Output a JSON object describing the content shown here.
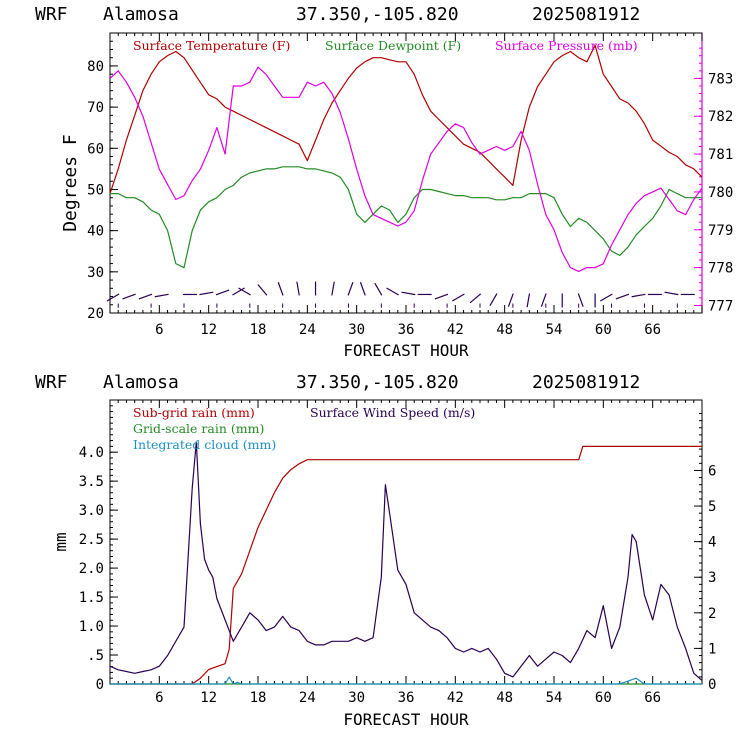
{
  "chart_data": [
    {
      "type": "line",
      "model": "WRF",
      "station": "Alamosa",
      "coords": "37.350,-105.820",
      "init": "2025081912",
      "xlabel": "FORECAST HOUR",
      "ylabel": "Degrees F",
      "xlim": [
        0,
        72
      ],
      "ylim": [
        20,
        88
      ],
      "y2lim": [
        776.8,
        784.2
      ],
      "x_ticks": [
        "6",
        "12",
        "18",
        "24",
        "30",
        "36",
        "42",
        "48",
        "54",
        "60",
        "66"
      ],
      "x_tick_values": [
        6,
        12,
        18,
        24,
        30,
        36,
        42,
        48,
        54,
        60,
        66
      ],
      "y_ticks": [
        "20",
        "30",
        "40",
        "50",
        "60",
        "70",
        "80"
      ],
      "y_tick_values": [
        20,
        30,
        40,
        50,
        60,
        70,
        80
      ],
      "y2_ticks": [
        "777",
        "778",
        "779",
        "780",
        "781",
        "782",
        "783"
      ],
      "y2_tick_values": [
        777,
        778,
        779,
        780,
        781,
        782,
        783
      ],
      "colors": {
        "temp": "#b00000",
        "dew": "#228b22",
        "pres": "#e000e0",
        "wind": "#2a0050",
        "axis_right": "#e000e0"
      },
      "series": [
        {
          "name": "Surface Temperature (F)",
          "axis": "left",
          "color": "#b00000",
          "x": [
            0,
            1,
            2,
            3,
            4,
            5,
            6,
            7,
            8,
            9,
            10,
            11,
            12,
            13,
            14,
            15,
            16,
            17,
            18,
            19,
            20,
            21,
            22,
            23,
            24,
            25,
            26,
            27,
            28,
            29,
            30,
            31,
            32,
            33,
            34,
            35,
            36,
            37,
            38,
            39,
            40,
            41,
            42,
            43,
            44,
            45,
            46,
            47,
            48,
            49,
            50,
            51,
            52,
            53,
            54,
            55,
            56,
            57,
            58,
            59,
            60,
            61,
            62,
            63,
            64,
            65,
            66,
            67,
            68,
            69,
            70,
            71,
            72
          ],
          "values": [
            49,
            55,
            62,
            68,
            74,
            78,
            81,
            82.5,
            83.5,
            82,
            79,
            76,
            73,
            72,
            70,
            69,
            68,
            67,
            66,
            65,
            64,
            63,
            62,
            61,
            57,
            62,
            67,
            71,
            74,
            77,
            79.5,
            81,
            82,
            82,
            81.5,
            81,
            81,
            78,
            73,
            69,
            67,
            65,
            63,
            61,
            60,
            59,
            57,
            55,
            53,
            51,
            62,
            70,
            75,
            78,
            81,
            82.5,
            83.5,
            82,
            81,
            85,
            78,
            75,
            72,
            71,
            69,
            66,
            62,
            60.5,
            59,
            58,
            56,
            55,
            53
          ]
        },
        {
          "name": "Surface Dewpoint (F)",
          "axis": "left",
          "color": "#228b22",
          "x": [
            0,
            1,
            2,
            3,
            4,
            5,
            6,
            7,
            8,
            9,
            10,
            11,
            12,
            13,
            14,
            15,
            16,
            17,
            18,
            19,
            20,
            21,
            22,
            23,
            24,
            25,
            26,
            27,
            28,
            29,
            30,
            31,
            32,
            33,
            34,
            35,
            36,
            37,
            38,
            39,
            40,
            41,
            42,
            43,
            44,
            45,
            46,
            47,
            48,
            49,
            50,
            51,
            52,
            53,
            54,
            55,
            56,
            57,
            58,
            59,
            60,
            61,
            62,
            63,
            64,
            65,
            66,
            67,
            68,
            69,
            70,
            71,
            72
          ],
          "values": [
            49,
            49,
            48,
            48,
            47,
            45,
            44,
            40,
            32,
            31,
            40,
            45,
            47,
            48,
            50,
            51,
            53,
            54,
            54.5,
            55,
            55,
            55.5,
            55.5,
            55.5,
            55,
            55,
            54.5,
            54,
            53,
            50,
            44,
            42,
            44,
            46,
            45,
            42,
            44,
            48,
            50,
            50,
            49.5,
            49,
            48.5,
            48.5,
            48,
            48,
            48,
            47.5,
            47.5,
            48,
            48,
            49,
            49,
            49,
            48,
            44,
            41,
            43,
            42,
            40,
            38,
            35,
            34,
            36,
            39,
            41,
            43,
            46,
            50,
            49,
            48,
            48,
            48
          ]
        },
        {
          "name": "Surface Pressure (mb)",
          "axis": "right",
          "color": "#e000e0",
          "x": [
            0,
            1,
            2,
            3,
            4,
            5,
            6,
            7,
            8,
            9,
            10,
            11,
            12,
            13,
            14,
            15,
            16,
            17,
            18,
            19,
            20,
            21,
            22,
            23,
            24,
            25,
            26,
            27,
            28,
            29,
            30,
            31,
            32,
            33,
            34,
            35,
            36,
            37,
            38,
            39,
            40,
            41,
            42,
            43,
            44,
            45,
            46,
            47,
            48,
            49,
            50,
            51,
            52,
            53,
            54,
            55,
            56,
            57,
            58,
            59,
            60,
            61,
            62,
            63,
            64,
            65,
            66,
            67,
            68,
            69,
            70,
            71,
            72
          ],
          "values": [
            783.0,
            783.2,
            782.9,
            782.5,
            782.0,
            781.3,
            780.6,
            780.2,
            779.8,
            779.9,
            780.3,
            780.6,
            781.1,
            781.7,
            781.0,
            782.8,
            782.8,
            782.9,
            783.3,
            783.1,
            782.8,
            782.5,
            782.5,
            782.5,
            782.9,
            782.8,
            782.9,
            782.6,
            782.1,
            781.4,
            780.6,
            779.9,
            779.4,
            779.3,
            779.2,
            779.1,
            779.2,
            779.5,
            780.3,
            781.0,
            781.3,
            781.6,
            781.8,
            781.7,
            781.3,
            781.0,
            781.1,
            781.2,
            781.1,
            781.2,
            781.6,
            781.1,
            780.2,
            779.4,
            779.0,
            778.4,
            778.0,
            777.9,
            778.0,
            778.0,
            778.1,
            778.6,
            779.0,
            779.4,
            779.7,
            779.9,
            780.0,
            780.1,
            779.8,
            779.5,
            779.4,
            779.8,
            780.1
          ]
        }
      ],
      "legend": [
        "Surface Temperature (F)",
        "Surface Dewpoint (F)",
        "Surface Pressure (mb)"
      ],
      "legend_position": "top-left",
      "grid": false,
      "wind_barbs": {
        "color": "#2a0050",
        "x": [
          1,
          3,
          5,
          7,
          9,
          11,
          13,
          15,
          17,
          19,
          21,
          23,
          25,
          27,
          29,
          31,
          33,
          35,
          37,
          39,
          41,
          43,
          45,
          47,
          49,
          51,
          53,
          55,
          57,
          59,
          61,
          63,
          65,
          67,
          69,
          71
        ],
        "direction_deg": [
          240,
          250,
          250,
          260,
          90,
          80,
          70,
          60,
          300,
          320,
          340,
          350,
          0,
          10,
          20,
          340,
          330,
          300,
          280,
          270,
          250,
          240,
          230,
          210,
          200,
          190,
          200,
          180,
          160,
          180,
          240,
          250,
          260,
          270,
          280,
          270
        ]
      }
    },
    {
      "type": "line",
      "model": "WRF",
      "station": "Alamosa",
      "coords": "37.350,-105.820",
      "init": "2025081912",
      "xlabel": "FORECAST HOUR",
      "ylabel": "mm",
      "xlim": [
        0,
        72
      ],
      "ylim": [
        0,
        4.9
      ],
      "y2lim": [
        0,
        7.98
      ],
      "x_ticks": [
        "6",
        "12",
        "18",
        "24",
        "30",
        "36",
        "42",
        "48",
        "54",
        "60",
        "66"
      ],
      "x_tick_values": [
        6,
        12,
        18,
        24,
        30,
        36,
        42,
        48,
        54,
        60,
        66
      ],
      "y_ticks": [
        "0",
        "0.5",
        "1.0",
        "1.5",
        "2.0",
        "2.5",
        "3.0",
        "3.5",
        "4.0"
      ],
      "y_tick_labels": [
        "0",
        ".5",
        "1.0",
        "1.5",
        "2.0",
        "2.5",
        "3.0",
        "3.5",
        "4.0"
      ],
      "y_tick_values": [
        0,
        0.5,
        1.0,
        1.5,
        2.0,
        2.5,
        3.0,
        3.5,
        4.0
      ],
      "y2_ticks": [
        "0",
        "1",
        "2",
        "3",
        "4",
        "5",
        "6"
      ],
      "y2_tick_values": [
        0,
        1,
        2,
        3,
        4,
        5,
        6
      ],
      "colors": {
        "rain_sub": "#b00000",
        "rain_grid": "#228b22",
        "cloud": "#1e8fc8",
        "wind": "#2a0050"
      },
      "series": [
        {
          "name": "Sub-grid rain (mm)",
          "axis": "left",
          "color": "#b00000",
          "x": [
            0,
            10,
            11,
            12,
            13,
            14,
            14.5,
            15,
            16,
            17,
            18,
            19,
            20,
            21,
            22,
            23,
            24,
            25,
            56,
            57,
            57.5,
            58,
            72
          ],
          "values": [
            0,
            0,
            0.1,
            0.25,
            0.3,
            0.35,
            0.6,
            1.65,
            1.9,
            2.3,
            2.7,
            3.0,
            3.3,
            3.55,
            3.7,
            3.8,
            3.87,
            3.87,
            3.87,
            3.87,
            4.1,
            4.1,
            4.1
          ]
        },
        {
          "name": "Grid-scale rain (mm)",
          "axis": "left",
          "color": "#228b22",
          "x": [
            0,
            72
          ],
          "values": [
            0,
            0
          ]
        },
        {
          "name": "Integrated cloud (mm)",
          "axis": "left",
          "color": "#1e8fc8",
          "x": [
            0,
            14,
            14.5,
            15,
            15.5,
            16,
            62,
            63,
            64,
            65,
            72
          ],
          "values": [
            0,
            0,
            0.12,
            0,
            0.03,
            0,
            0,
            0.05,
            0.1,
            0,
            0
          ]
        },
        {
          "name": "Surface Wind Speed (m/s)",
          "axis": "right",
          "color": "#2a0050",
          "x": [
            0,
            1,
            2,
            3,
            4,
            5,
            6,
            7,
            8,
            9,
            10,
            10.5,
            11,
            11.5,
            12,
            12.5,
            13,
            14,
            15,
            16,
            17,
            18,
            19,
            20,
            21,
            22,
            23,
            24,
            25,
            26,
            27,
            28,
            29,
            30,
            31,
            32,
            33,
            33.5,
            34,
            35,
            36,
            37,
            38,
            39,
            40,
            41,
            42,
            43,
            44,
            45,
            46,
            47,
            48,
            49,
            50,
            51,
            52,
            53,
            54,
            55,
            56,
            57,
            58,
            59,
            60,
            61,
            62,
            63,
            63.5,
            64,
            65,
            66,
            67,
            68,
            69,
            70,
            71,
            72
          ],
          "values": [
            0.5,
            0.4,
            0.35,
            0.3,
            0.35,
            0.4,
            0.5,
            0.8,
            1.2,
            1.6,
            5.5,
            6.8,
            4.5,
            3.5,
            3.2,
            3.0,
            2.4,
            1.8,
            1.2,
            1.6,
            2.0,
            1.8,
            1.5,
            1.6,
            1.9,
            1.6,
            1.5,
            1.2,
            1.1,
            1.1,
            1.2,
            1.2,
            1.2,
            1.3,
            1.2,
            1.3,
            3.0,
            5.6,
            4.8,
            3.2,
            2.8,
            2.0,
            1.8,
            1.6,
            1.5,
            1.3,
            1.0,
            0.9,
            1.0,
            0.9,
            1.0,
            0.7,
            0.3,
            0.2,
            0.5,
            0.8,
            0.5,
            0.7,
            0.9,
            0.8,
            0.6,
            1.0,
            1.5,
            1.3,
            2.2,
            1.0,
            1.6,
            3.0,
            4.2,
            4.0,
            2.5,
            1.8,
            2.8,
            2.5,
            1.6,
            1.0,
            0.3,
            0.1
          ]
        }
      ],
      "legend": [
        "Sub-grid rain (mm)",
        "Grid-scale rain (mm)",
        "Integrated cloud (mm)",
        "Surface Wind Speed (m/s)"
      ],
      "legend_position": "top-left",
      "grid": false
    }
  ]
}
